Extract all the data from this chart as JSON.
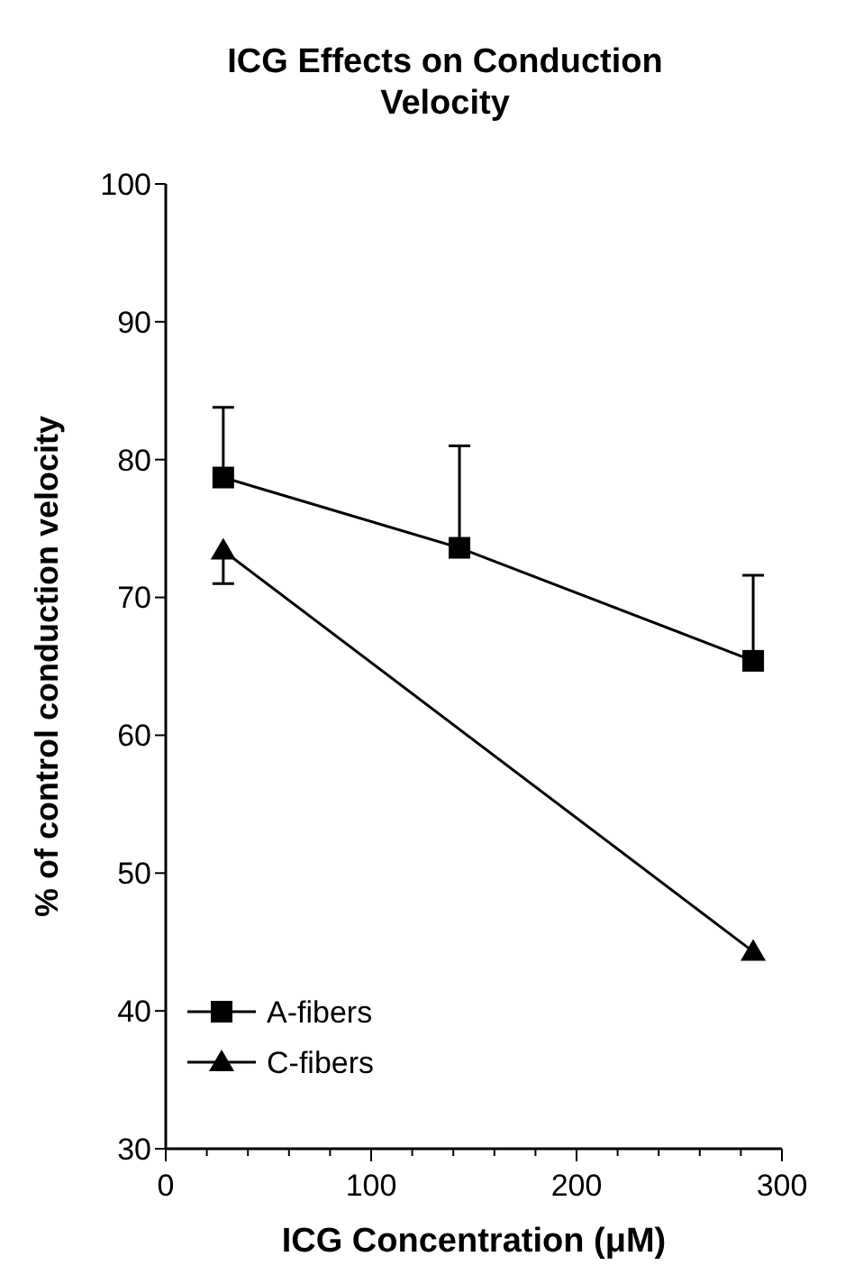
{
  "chart_data": {
    "type": "line",
    "title": "ICG Effects on Conduction Velocity",
    "xlabel": "ICG Concentration (μM)",
    "ylabel": "% of control conduction velocity",
    "xlim": [
      0,
      300
    ],
    "ylim": [
      30,
      100
    ],
    "xticks": [
      0,
      {
        "value": 20,
        "label": null
      },
      {
        "value": 40,
        "label": null
      },
      {
        "value": 60,
        "label": null
      },
      {
        "value": 80,
        "label": null
      },
      100,
      {
        "value": 120,
        "label": null
      },
      {
        "value": 140,
        "label": null
      },
      {
        "value": 160,
        "label": null
      },
      {
        "value": 180,
        "label": null
      },
      200,
      {
        "value": 220,
        "label": null
      },
      {
        "value": 240,
        "label": null
      },
      {
        "value": 260,
        "label": null
      },
      {
        "value": 280,
        "label": null
      },
      300
    ],
    "yticks": [
      30,
      40,
      50,
      60,
      70,
      80,
      90,
      100
    ],
    "grid": false,
    "legend": "bottom left",
    "series": [
      {
        "name": "A-fibers",
        "color": "#000000",
        "marker": "square",
        "x": [
          28,
          143,
          286
        ],
        "values": [
          78.7,
          73.6,
          65.4
        ],
        "errors": [
          [
            78.7,
            83.8
          ],
          [
            73.6,
            81.0
          ],
          [
            65.4,
            71.6
          ]
        ]
      },
      {
        "name": "C-fibers",
        "color": "#000000",
        "marker": "triangle",
        "x": [
          28,
          286
        ],
        "values": [
          73.4,
          44.3
        ],
        "errors": [
          [
            71.0,
            73.4
          ],
          null
        ]
      }
    ]
  }
}
